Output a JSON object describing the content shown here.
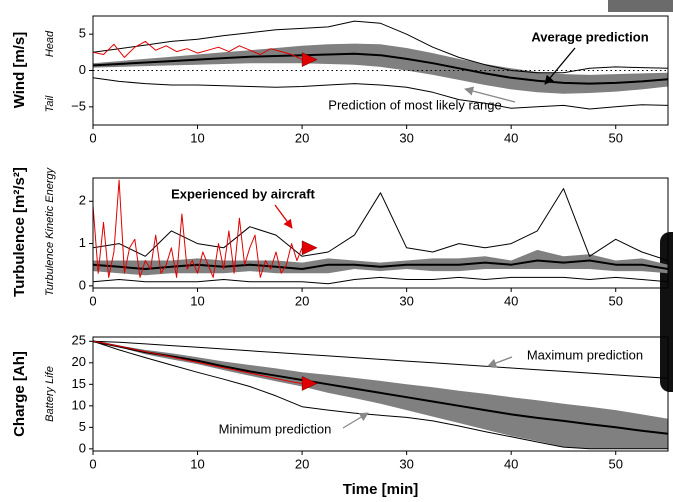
{
  "chart_data": [
    {
      "type": "line",
      "ylabel": "Wind [m/s]",
      "ylabel_notes": [
        "Head",
        "Tail"
      ],
      "xlim": [
        0,
        55
      ],
      "xticks": [
        0,
        10,
        20,
        30,
        40,
        50
      ],
      "ylim": [
        -7.5,
        7.5
      ],
      "yticks": [
        {
          "value": -5,
          "label": "−5"
        },
        0,
        5
      ],
      "hline": 0,
      "x": [
        0,
        2.5,
        5,
        7.5,
        10,
        12.5,
        15,
        17.5,
        20,
        22.5,
        25,
        27.5,
        30,
        32.5,
        35,
        37.5,
        40,
        42.5,
        45,
        47.5,
        50,
        52.5,
        55
      ],
      "band": {
        "color": "#808080",
        "upper": [
          1.0,
          1.3,
          1.6,
          1.9,
          2.2,
          2.5,
          2.8,
          3.1,
          3.4,
          3.6,
          3.7,
          3.6,
          3.1,
          2.4,
          1.6,
          0.9,
          0.3,
          -0.2,
          -0.5,
          -0.6,
          -0.5,
          -0.4,
          -0.3
        ],
        "lower": [
          0.4,
          0.5,
          0.6,
          0.7,
          0.8,
          0.9,
          1.0,
          1.0,
          1.0,
          0.9,
          0.8,
          0.5,
          0.0,
          -0.6,
          -1.3,
          -2.0,
          -2.6,
          -3.0,
          -3.2,
          -3.1,
          -2.9,
          -2.6,
          -2.2
        ]
      },
      "series": [
        {
          "color": "#000000",
          "width": 2,
          "values": [
            0.7,
            0.9,
            1.1,
            1.3,
            1.5,
            1.7,
            1.9,
            2.0,
            2.1,
            2.2,
            2.3,
            2.1,
            1.6,
            1.0,
            0.3,
            -0.4,
            -1.0,
            -1.4,
            -1.7,
            -1.8,
            -1.7,
            -1.5,
            -1.2
          ]
        },
        {
          "color": "#000000",
          "width": 1,
          "values": [
            2.5,
            3.0,
            3.5,
            4.0,
            4.3,
            4.8,
            5.2,
            5.6,
            5.8,
            6.0,
            6.8,
            6.5,
            5.0,
            3.2,
            1.8,
            0.8,
            0.0,
            -0.3,
            -0.3,
            0.3,
            0.5,
            0.4,
            0.3
          ]
        },
        {
          "color": "#000000",
          "width": 1,
          "values": [
            -1.0,
            -1.5,
            -1.8,
            -2.0,
            -2.0,
            -2.1,
            -2.2,
            -2.3,
            -2.2,
            -2.0,
            -1.8,
            -2.0,
            -2.3,
            -3.0,
            -4.0,
            -4.5,
            -5.2,
            -5.0,
            -4.8,
            -5.3,
            -5.0,
            -4.7,
            -4.8
          ]
        }
      ],
      "observed": {
        "color": "#e00000",
        "x": [
          0,
          1,
          2,
          3,
          4,
          5,
          6,
          7,
          8,
          9,
          10,
          11,
          12,
          13,
          14,
          15,
          16,
          17,
          18,
          19,
          20
        ],
        "values": [
          2.5,
          2.2,
          3.6,
          1.8,
          3.2,
          4.0,
          2.8,
          3.4,
          2.6,
          3.0,
          2.4,
          2.8,
          3.2,
          2.6,
          3.4,
          2.8,
          2.2,
          3.0,
          2.6,
          2.2,
          1.5
        ]
      },
      "annotations": [
        {
          "text": "Average prediction",
          "color": "#000000",
          "bold": true
        },
        {
          "text": "Prediction of most likely range",
          "color": "#000000",
          "bold": false
        }
      ]
    },
    {
      "type": "line",
      "ylabel": "Turbulence [m²/s²]",
      "ylabel_notes": [
        "Turbulence Kinetic Energy"
      ],
      "xlim": [
        0,
        55
      ],
      "xticks": [
        0,
        10,
        20,
        30,
        40,
        50
      ],
      "ylim": [
        -0.05,
        2.55
      ],
      "yticks": [
        0,
        1,
        2
      ],
      "x": [
        0,
        2.5,
        5,
        7.5,
        10,
        12.5,
        15,
        17.5,
        20,
        22.5,
        25,
        27.5,
        30,
        32.5,
        35,
        37.5,
        40,
        42.5,
        45,
        47.5,
        50,
        52.5,
        55
      ],
      "band": {
        "color": "#808080",
        "upper": [
          0.6,
          0.6,
          0.6,
          0.6,
          0.65,
          0.6,
          0.6,
          0.6,
          0.55,
          0.65,
          0.6,
          0.55,
          0.6,
          0.65,
          0.65,
          0.7,
          0.6,
          0.85,
          0.7,
          0.75,
          0.6,
          0.65,
          0.5
        ],
        "lower": [
          0.35,
          0.3,
          0.25,
          0.3,
          0.3,
          0.3,
          0.35,
          0.3,
          0.3,
          0.3,
          0.4,
          0.35,
          0.4,
          0.35,
          0.35,
          0.4,
          0.4,
          0.4,
          0.4,
          0.4,
          0.35,
          0.35,
          0.3
        ]
      },
      "series": [
        {
          "color": "#000000",
          "width": 2,
          "values": [
            0.5,
            0.45,
            0.4,
            0.45,
            0.5,
            0.45,
            0.5,
            0.45,
            0.4,
            0.5,
            0.5,
            0.45,
            0.5,
            0.5,
            0.5,
            0.55,
            0.5,
            0.6,
            0.55,
            0.6,
            0.5,
            0.5,
            0.4
          ]
        },
        {
          "color": "#000000",
          "width": 1,
          "values": [
            0.9,
            1.0,
            0.7,
            1.3,
            1.0,
            0.9,
            1.4,
            1.2,
            0.7,
            0.8,
            1.2,
            2.2,
            0.9,
            0.8,
            1.0,
            0.9,
            1.0,
            1.3,
            2.3,
            0.7,
            1.1,
            0.8,
            0.6
          ]
        },
        {
          "color": "#000000",
          "width": 1,
          "values": [
            0.1,
            0.15,
            0.1,
            0.1,
            0.1,
            0.15,
            0.1,
            0.1,
            0.1,
            0.05,
            0.15,
            0.2,
            0.15,
            0.15,
            0.2,
            0.15,
            0.2,
            0.2,
            0.2,
            0.15,
            0.2,
            0.15,
            0.1
          ]
        }
      ],
      "observed": {
        "color": "#e00000",
        "x": [
          0,
          0.5,
          1,
          1.5,
          2,
          2.5,
          3,
          3.5,
          4,
          4.5,
          5,
          5.5,
          6,
          6.5,
          7,
          7.5,
          8,
          8.5,
          9,
          9.5,
          10,
          10.5,
          11,
          11.5,
          12,
          12.5,
          13,
          13.5,
          14,
          14.5,
          15,
          15.5,
          16,
          16.5,
          17,
          17.5,
          18,
          18.5,
          19,
          19.5,
          20
        ],
        "values": [
          1.9,
          0.3,
          1.5,
          0.2,
          0.8,
          2.5,
          0.3,
          0.9,
          1.1,
          0.2,
          0.6,
          0.4,
          1.2,
          0.3,
          0.5,
          0.9,
          0.2,
          1.7,
          0.4,
          0.6,
          0.3,
          0.8,
          0.5,
          0.2,
          1.0,
          0.4,
          1.3,
          0.3,
          1.6,
          0.5,
          0.9,
          1.2,
          0.2,
          0.6,
          0.4,
          0.8,
          0.3,
          0.5,
          1.0,
          0.6,
          0.9
        ]
      },
      "annotations": [
        {
          "text": "Experienced by aircraft",
          "color": "#e00000",
          "bold": true
        }
      ]
    },
    {
      "type": "line",
      "ylabel": "Charge [Ah]",
      "ylabel_notes": [
        "Battery Life"
      ],
      "xlabel": "Time [min]",
      "xlim": [
        0,
        55
      ],
      "xticks": [
        0,
        10,
        20,
        30,
        40,
        50
      ],
      "ylim": [
        -0.5,
        26
      ],
      "yticks": [
        0,
        5,
        10,
        15,
        20,
        25
      ],
      "x": [
        0,
        2.5,
        5,
        7.5,
        10,
        12.5,
        15,
        17.5,
        20,
        22.5,
        25,
        27.5,
        30,
        32.5,
        35,
        37.5,
        40,
        42.5,
        45,
        47.5,
        50,
        52.5,
        55
      ],
      "band": {
        "color": "#808080",
        "upper": [
          25,
          24,
          23,
          22.2,
          21.3,
          20.3,
          19.5,
          18.7,
          17.8,
          17.2,
          16.5,
          15.8,
          15,
          14.3,
          13.5,
          12.8,
          12,
          11.3,
          10.5,
          9.8,
          9,
          8,
          7
        ],
        "lower": [
          25,
          23.6,
          22,
          20.8,
          19.7,
          18.3,
          17,
          15.7,
          14.5,
          13,
          11.8,
          10.5,
          9,
          7.5,
          6,
          4.5,
          3,
          1.8,
          0.5,
          0,
          0,
          0,
          0
        ]
      },
      "series": [
        {
          "color": "#000000",
          "width": 2,
          "values": [
            25,
            23.8,
            22.5,
            21.5,
            20.5,
            19.2,
            18,
            17,
            16,
            15,
            14,
            13,
            12,
            11,
            10,
            9,
            8,
            7.2,
            6.5,
            5.7,
            5,
            4.2,
            3.5
          ]
        },
        {
          "color": "#000000",
          "width": 1,
          "values": [
            25,
            24.8,
            24.4,
            24,
            23.6,
            23.2,
            22.8,
            22.4,
            22,
            21.6,
            21.2,
            20.8,
            20.4,
            20,
            19.6,
            19.2,
            18.8,
            18.4,
            18,
            17.6,
            17.2,
            16.8,
            16.4
          ]
        },
        {
          "color": "#000000",
          "width": 1,
          "values": [
            25,
            23,
            21.2,
            19.5,
            17.8,
            16.2,
            14.5,
            12.3,
            9.8,
            9.0,
            8.3,
            7.8,
            7.3,
            6.5,
            5.3,
            4.0,
            2.8,
            1.6,
            0.4,
            0,
            0,
            0,
            0
          ]
        }
      ],
      "observed": {
        "color": "#e00000",
        "x": [
          0,
          1,
          2,
          3,
          4,
          5,
          6,
          7,
          8,
          9,
          10,
          11,
          12,
          13,
          14,
          15,
          16,
          17,
          18,
          19,
          20
        ],
        "values": [
          25,
          24.6,
          24.1,
          23.6,
          23.1,
          22.6,
          22.1,
          21.6,
          21.1,
          20.6,
          20.1,
          19.6,
          19.1,
          18.6,
          18.1,
          17.6,
          17.1,
          16.6,
          16.1,
          15.6,
          15.2
        ]
      },
      "annotations": [
        {
          "text": "Maximum prediction",
          "color": "#000000",
          "bold": false
        },
        {
          "text": "Minimum prediction",
          "color": "#000000",
          "bold": false
        }
      ]
    }
  ]
}
